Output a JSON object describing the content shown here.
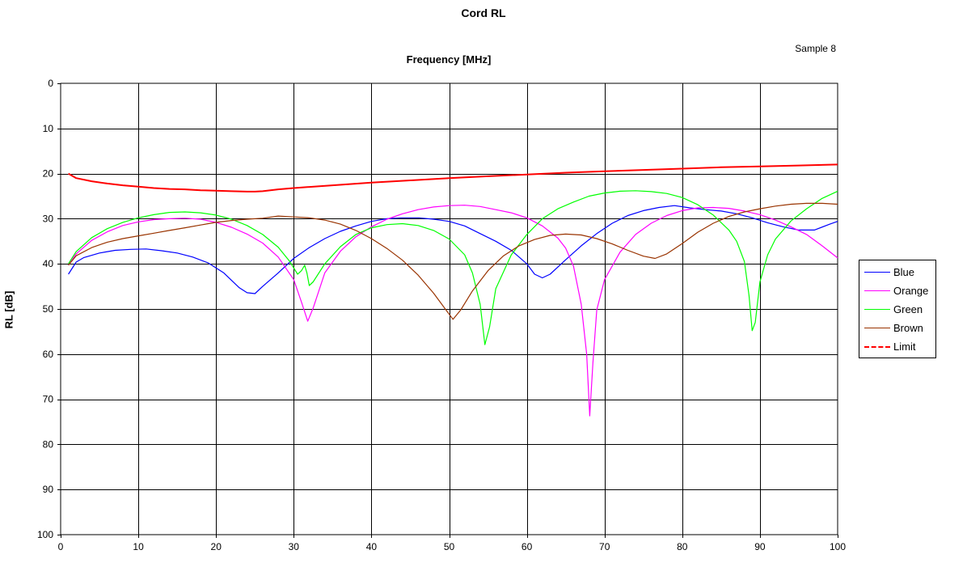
{
  "chart_data": {
    "type": "line",
    "title": "Cord RL",
    "subtitle": "Sample 8",
    "xlabel": "Frequency [MHz]",
    "ylabel": "RL [dB]",
    "xlim": [
      0,
      100
    ],
    "ylim": [
      0,
      100
    ],
    "y_inverted": true,
    "x_axis_position": "top",
    "x_ticks": [
      "0",
      "10",
      "20",
      "30",
      "40",
      "50",
      "60",
      "70",
      "80",
      "90",
      "100"
    ],
    "y_ticks": [
      "0",
      "10",
      "20",
      "30",
      "40",
      "50",
      "60",
      "70",
      "80",
      "90",
      "100"
    ],
    "grid": true,
    "legend_position": "right",
    "series": [
      {
        "name": "Blue",
        "color": "#0000ff",
        "dash": "solid",
        "points": [
          [
            1,
            42.3
          ],
          [
            2,
            39.6
          ],
          [
            3,
            38.6
          ],
          [
            5,
            37.6
          ],
          [
            7,
            37.0
          ],
          [
            9,
            36.8
          ],
          [
            11,
            36.7
          ],
          [
            13,
            37.1
          ],
          [
            15,
            37.6
          ],
          [
            17,
            38.5
          ],
          [
            19,
            39.8
          ],
          [
            21,
            42.0
          ],
          [
            23,
            45.3
          ],
          [
            24,
            46.4
          ],
          [
            25,
            46.6
          ],
          [
            26,
            45.0
          ],
          [
            28,
            42.0
          ],
          [
            30,
            38.8
          ],
          [
            32,
            36.4
          ],
          [
            34,
            34.4
          ],
          [
            36,
            32.8
          ],
          [
            38,
            31.6
          ],
          [
            40,
            30.6
          ],
          [
            42,
            30.0
          ],
          [
            44,
            29.8
          ],
          [
            46,
            29.8
          ],
          [
            48,
            30.1
          ],
          [
            50,
            30.6
          ],
          [
            52,
            31.6
          ],
          [
            54,
            33.3
          ],
          [
            56,
            35.0
          ],
          [
            58,
            37.0
          ],
          [
            60,
            40.0
          ],
          [
            61,
            42.3
          ],
          [
            62,
            43.1
          ],
          [
            63,
            42.3
          ],
          [
            65,
            39.1
          ],
          [
            67,
            36.0
          ],
          [
            69,
            33.3
          ],
          [
            71,
            31.0
          ],
          [
            73,
            29.3
          ],
          [
            75,
            28.2
          ],
          [
            77,
            27.5
          ],
          [
            79,
            27.1
          ],
          [
            81,
            27.6
          ],
          [
            83,
            28.0
          ],
          [
            85,
            28.3
          ],
          [
            87,
            28.9
          ],
          [
            89,
            29.8
          ],
          [
            91,
            30.9
          ],
          [
            93,
            31.8
          ],
          [
            95,
            32.5
          ],
          [
            97,
            32.5
          ],
          [
            99,
            31.2
          ],
          [
            100,
            30.6
          ]
        ]
      },
      {
        "name": "Orange",
        "color": "#ff00ff",
        "dash": "solid",
        "points": [
          [
            1,
            40.3
          ],
          [
            2,
            37.8
          ],
          [
            4,
            34.8
          ],
          [
            6,
            32.9
          ],
          [
            8,
            31.5
          ],
          [
            10,
            30.7
          ],
          [
            12,
            30.2
          ],
          [
            14,
            30.0
          ],
          [
            16,
            29.9
          ],
          [
            18,
            30.1
          ],
          [
            20,
            30.8
          ],
          [
            22,
            31.9
          ],
          [
            24,
            33.4
          ],
          [
            26,
            35.4
          ],
          [
            28,
            38.5
          ],
          [
            30,
            43.5
          ],
          [
            31,
            48.5
          ],
          [
            31.8,
            52.7
          ],
          [
            32.5,
            49.8
          ],
          [
            34,
            42.0
          ],
          [
            36,
            37.2
          ],
          [
            38,
            34.0
          ],
          [
            40,
            31.8
          ],
          [
            42,
            30.1
          ],
          [
            44,
            28.9
          ],
          [
            46,
            28.0
          ],
          [
            48,
            27.4
          ],
          [
            50,
            27.1
          ],
          [
            52,
            27.0
          ],
          [
            54,
            27.3
          ],
          [
            56,
            28.0
          ],
          [
            58,
            28.7
          ],
          [
            60,
            29.8
          ],
          [
            62,
            31.6
          ],
          [
            64,
            34.3
          ],
          [
            65,
            36.5
          ],
          [
            66,
            40.5
          ],
          [
            67,
            49.0
          ],
          [
            67.7,
            60.0
          ],
          [
            68.1,
            73.7
          ],
          [
            68.5,
            62.0
          ],
          [
            69,
            50.2
          ],
          [
            70,
            43.5
          ],
          [
            72,
            37.4
          ],
          [
            74,
            33.5
          ],
          [
            76,
            31.0
          ],
          [
            78,
            29.3
          ],
          [
            80,
            28.2
          ],
          [
            82,
            27.6
          ],
          [
            84,
            27.5
          ],
          [
            86,
            27.7
          ],
          [
            88,
            28.3
          ],
          [
            90,
            29.1
          ],
          [
            92,
            30.3
          ],
          [
            94,
            31.8
          ],
          [
            96,
            33.5
          ],
          [
            98,
            36.0
          ],
          [
            100,
            38.7
          ]
        ]
      },
      {
        "name": "Green",
        "color": "#00ff00",
        "dash": "solid",
        "points": [
          [
            1,
            40.0
          ],
          [
            2,
            37.3
          ],
          [
            4,
            34.2
          ],
          [
            6,
            32.2
          ],
          [
            8,
            30.8
          ],
          [
            10,
            29.8
          ],
          [
            12,
            29.1
          ],
          [
            14,
            28.6
          ],
          [
            16,
            28.5
          ],
          [
            18,
            28.7
          ],
          [
            20,
            29.2
          ],
          [
            22,
            30.1
          ],
          [
            24,
            31.5
          ],
          [
            26,
            33.5
          ],
          [
            28,
            36.3
          ],
          [
            29.5,
            39.5
          ],
          [
            30.5,
            42.3
          ],
          [
            31,
            41.5
          ],
          [
            31.4,
            40.3
          ],
          [
            31.7,
            42.0
          ],
          [
            32,
            44.8
          ],
          [
            32.5,
            44.0
          ],
          [
            34,
            40.0
          ],
          [
            36,
            36.2
          ],
          [
            38,
            33.5
          ],
          [
            40,
            32.0
          ],
          [
            42,
            31.3
          ],
          [
            44,
            31.1
          ],
          [
            46,
            31.5
          ],
          [
            48,
            32.6
          ],
          [
            50,
            34.5
          ],
          [
            52,
            38.0
          ],
          [
            53,
            42.0
          ],
          [
            54,
            49.0
          ],
          [
            54.6,
            57.9
          ],
          [
            55.2,
            54.0
          ],
          [
            56,
            45.5
          ],
          [
            58,
            38.0
          ],
          [
            60,
            33.5
          ],
          [
            62,
            30.0
          ],
          [
            64,
            27.8
          ],
          [
            66,
            26.3
          ],
          [
            68,
            25.0
          ],
          [
            70,
            24.3
          ],
          [
            72,
            23.9
          ],
          [
            74,
            23.8
          ],
          [
            76,
            24.0
          ],
          [
            78,
            24.4
          ],
          [
            80,
            25.3
          ],
          [
            82,
            26.9
          ],
          [
            84,
            29.2
          ],
          [
            86,
            32.5
          ],
          [
            87,
            35.0
          ],
          [
            88,
            39.5
          ],
          [
            88.6,
            47.0
          ],
          [
            89,
            54.8
          ],
          [
            89.4,
            53.0
          ],
          [
            90,
            44.0
          ],
          [
            91,
            38.0
          ],
          [
            92,
            34.5
          ],
          [
            94,
            30.5
          ],
          [
            96,
            27.8
          ],
          [
            98,
            25.5
          ],
          [
            100,
            23.9
          ]
        ]
      },
      {
        "name": "Brown",
        "color": "#993300",
        "dash": "solid",
        "points": [
          [
            1,
            40.3
          ],
          [
            2,
            38.2
          ],
          [
            4,
            36.4
          ],
          [
            6,
            35.2
          ],
          [
            8,
            34.4
          ],
          [
            10,
            33.8
          ],
          [
            12,
            33.2
          ],
          [
            14,
            32.6
          ],
          [
            16,
            32.0
          ],
          [
            18,
            31.4
          ],
          [
            20,
            30.8
          ],
          [
            22,
            30.4
          ],
          [
            24,
            30.1
          ],
          [
            26,
            29.9
          ],
          [
            28,
            29.4
          ],
          [
            30,
            29.6
          ],
          [
            32,
            29.8
          ],
          [
            34,
            30.3
          ],
          [
            36,
            31.2
          ],
          [
            38,
            32.6
          ],
          [
            40,
            34.4
          ],
          [
            42,
            36.6
          ],
          [
            44,
            39.2
          ],
          [
            46,
            42.5
          ],
          [
            48,
            46.5
          ],
          [
            49.5,
            50.0
          ],
          [
            50.5,
            52.3
          ],
          [
            51.5,
            50.2
          ],
          [
            53,
            46.0
          ],
          [
            55,
            41.5
          ],
          [
            57,
            38.2
          ],
          [
            59,
            36.0
          ],
          [
            61,
            34.6
          ],
          [
            63,
            33.7
          ],
          [
            65,
            33.4
          ],
          [
            67,
            33.6
          ],
          [
            69,
            34.4
          ],
          [
            71,
            35.6
          ],
          [
            73,
            37.0
          ],
          [
            75,
            38.3
          ],
          [
            76.5,
            38.8
          ],
          [
            78,
            37.8
          ],
          [
            80,
            35.5
          ],
          [
            82,
            33.0
          ],
          [
            84,
            31.0
          ],
          [
            86,
            29.5
          ],
          [
            88,
            28.5
          ],
          [
            90,
            27.8
          ],
          [
            92,
            27.2
          ],
          [
            94,
            26.8
          ],
          [
            96,
            26.6
          ],
          [
            98,
            26.6
          ],
          [
            100,
            26.8
          ]
        ]
      },
      {
        "name": "Limit",
        "color": "#ff0000",
        "dash": "dashed",
        "points": [
          [
            1,
            20.0
          ],
          [
            2,
            21.0
          ],
          [
            4,
            21.7
          ],
          [
            6,
            22.2
          ],
          [
            8,
            22.6
          ],
          [
            10,
            22.9
          ],
          [
            12,
            23.2
          ],
          [
            14,
            23.4
          ],
          [
            16,
            23.5
          ],
          [
            18,
            23.7
          ],
          [
            20,
            23.8
          ],
          [
            22,
            23.9
          ],
          [
            24,
            24.0
          ],
          [
            25,
            24.0
          ],
          [
            26,
            23.9
          ],
          [
            28,
            23.5
          ],
          [
            30,
            23.2
          ],
          [
            35,
            22.6
          ],
          [
            40,
            22.0
          ],
          [
            45,
            21.5
          ],
          [
            50,
            21.0
          ],
          [
            55,
            20.6
          ],
          [
            60,
            20.2
          ],
          [
            65,
            19.8
          ],
          [
            70,
            19.5
          ],
          [
            75,
            19.2
          ],
          [
            80,
            18.9
          ],
          [
            85,
            18.6
          ],
          [
            90,
            18.4
          ],
          [
            95,
            18.2
          ],
          [
            100,
            18.0
          ]
        ]
      }
    ]
  }
}
